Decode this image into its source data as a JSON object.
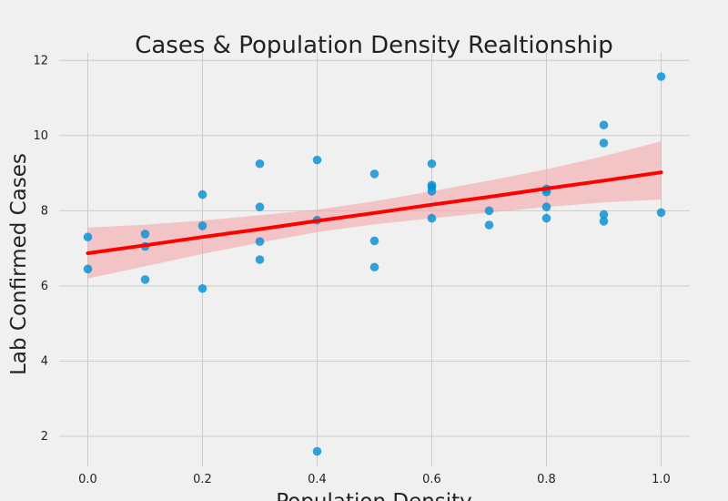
{
  "chart_data": {
    "type": "scatter",
    "title": "Cases & Population Density Realtionship",
    "xlabel": "Population Density",
    "ylabel": "Lab Confirmed Cases",
    "xlim": [
      -0.05,
      1.05
    ],
    "ylim": [
      1.2,
      12.2
    ],
    "xticks": [
      0.0,
      0.2,
      0.4,
      0.6,
      0.8,
      1.0
    ],
    "xtick_labels": [
      "0.0",
      "0.2",
      "0.4",
      "0.6",
      "0.8",
      "1.0"
    ],
    "yticks": [
      2,
      4,
      6,
      8,
      10,
      12
    ],
    "ytick_labels": [
      "2",
      "4",
      "6",
      "8",
      "10",
      "12"
    ],
    "grid": true,
    "points": [
      {
        "x": 0.0,
        "y": 7.3
      },
      {
        "x": 0.0,
        "y": 6.45
      },
      {
        "x": 0.1,
        "y": 7.38
      },
      {
        "x": 0.1,
        "y": 7.05
      },
      {
        "x": 0.1,
        "y": 6.17
      },
      {
        "x": 0.2,
        "y": 8.43
      },
      {
        "x": 0.2,
        "y": 7.6
      },
      {
        "x": 0.2,
        "y": 5.93
      },
      {
        "x": 0.3,
        "y": 9.25
      },
      {
        "x": 0.3,
        "y": 8.1
      },
      {
        "x": 0.3,
        "y": 7.18
      },
      {
        "x": 0.3,
        "y": 6.7
      },
      {
        "x": 0.4,
        "y": 9.35
      },
      {
        "x": 0.4,
        "y": 7.75
      },
      {
        "x": 0.4,
        "y": 1.6
      },
      {
        "x": 0.5,
        "y": 8.98
      },
      {
        "x": 0.5,
        "y": 7.2
      },
      {
        "x": 0.5,
        "y": 6.5
      },
      {
        "x": 0.6,
        "y": 9.25
      },
      {
        "x": 0.6,
        "y": 8.68
      },
      {
        "x": 0.6,
        "y": 8.63
      },
      {
        "x": 0.6,
        "y": 8.52
      },
      {
        "x": 0.6,
        "y": 7.8
      },
      {
        "x": 0.7,
        "y": 8.0
      },
      {
        "x": 0.7,
        "y": 7.62
      },
      {
        "x": 0.8,
        "y": 8.58
      },
      {
        "x": 0.8,
        "y": 8.5
      },
      {
        "x": 0.8,
        "y": 8.1
      },
      {
        "x": 0.8,
        "y": 7.8
      },
      {
        "x": 0.9,
        "y": 10.28
      },
      {
        "x": 0.9,
        "y": 9.8
      },
      {
        "x": 0.9,
        "y": 7.9
      },
      {
        "x": 0.9,
        "y": 7.72
      },
      {
        "x": 1.0,
        "y": 11.57
      },
      {
        "x": 1.0,
        "y": 7.95
      }
    ],
    "regression": {
      "x": [
        0.0,
        0.1,
        0.2,
        0.3,
        0.4,
        0.5,
        0.6,
        0.7,
        0.8,
        0.9,
        1.0
      ],
      "y": [
        6.87,
        7.08,
        7.3,
        7.51,
        7.73,
        7.94,
        8.16,
        8.37,
        8.59,
        8.8,
        9.02
      ],
      "ci_lower": [
        6.2,
        6.52,
        6.85,
        7.15,
        7.43,
        7.64,
        7.8,
        7.95,
        8.1,
        8.22,
        8.3
      ],
      "ci_upper": [
        7.55,
        7.63,
        7.74,
        7.88,
        8.03,
        8.25,
        8.52,
        8.8,
        9.1,
        9.45,
        9.85
      ]
    },
    "colors": {
      "background": "#f0f0f0",
      "points": "#008fd5",
      "regression_line": "#ff0000",
      "confidence_band": "#f4a6a8",
      "grid": "#cbcbcb",
      "text": "#222222"
    }
  }
}
